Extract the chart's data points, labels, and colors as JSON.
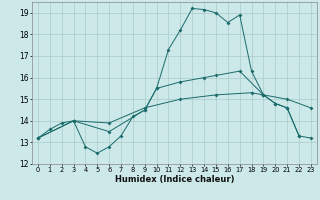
{
  "xlabel": "Humidex (Indice chaleur)",
  "background_color": "#cce8e8",
  "grid_color": "#aacccc",
  "line_color": "#1a6b6b",
  "xlim": [
    -0.5,
    23.5
  ],
  "ylim": [
    12,
    19.5
  ],
  "yticks": [
    12,
    13,
    14,
    15,
    16,
    17,
    18,
    19
  ],
  "xticks": [
    0,
    1,
    2,
    3,
    4,
    5,
    6,
    7,
    8,
    9,
    10,
    11,
    12,
    13,
    14,
    15,
    16,
    17,
    18,
    19,
    20,
    21,
    22,
    23
  ],
  "line1_x": [
    0,
    1,
    2,
    3,
    4,
    5,
    6,
    7,
    8,
    9,
    10,
    11,
    12,
    13,
    14,
    15,
    16,
    17,
    18,
    19,
    20,
    21,
    22
  ],
  "line1_y": [
    13.2,
    13.6,
    13.9,
    14.0,
    12.8,
    12.5,
    12.8,
    13.3,
    14.2,
    14.5,
    15.5,
    17.3,
    18.2,
    19.2,
    19.15,
    19.0,
    18.55,
    18.9,
    16.3,
    15.2,
    14.8,
    14.6,
    13.3
  ],
  "line2_x": [
    0,
    3,
    6,
    9,
    10,
    12,
    14,
    15,
    17,
    19,
    20,
    21,
    22,
    23
  ],
  "line2_y": [
    13.2,
    14.0,
    13.5,
    14.5,
    15.5,
    15.8,
    16.0,
    16.1,
    16.3,
    15.2,
    14.8,
    14.6,
    13.3,
    13.2
  ],
  "line3_x": [
    0,
    3,
    6,
    9,
    12,
    15,
    18,
    19,
    21,
    23
  ],
  "line3_y": [
    13.2,
    14.0,
    13.9,
    14.6,
    15.0,
    15.2,
    15.3,
    15.2,
    15.0,
    14.6
  ]
}
